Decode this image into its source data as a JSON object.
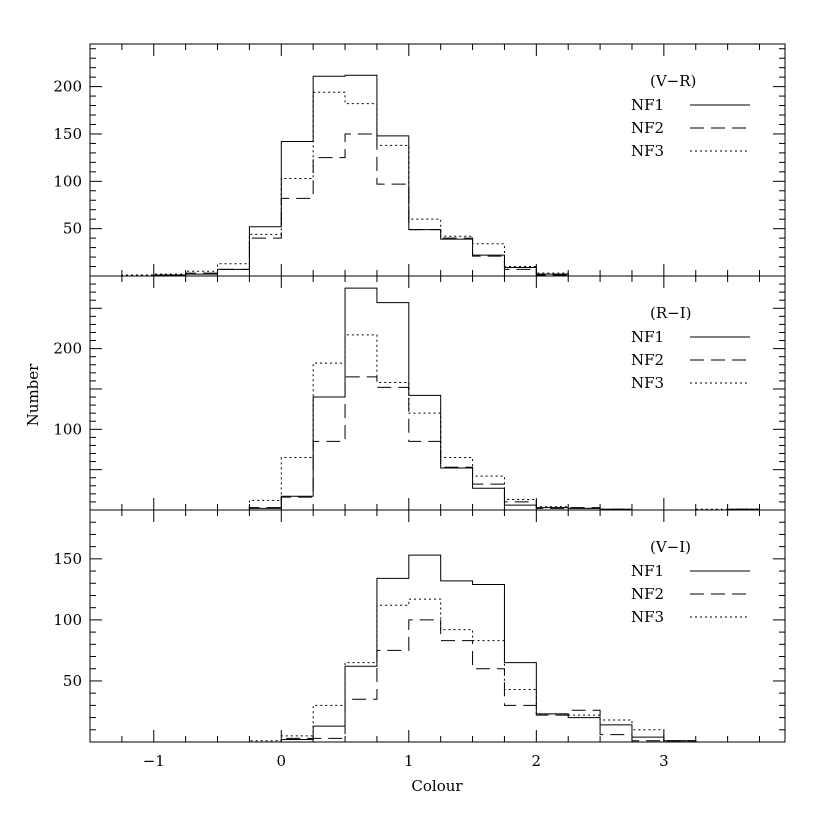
{
  "chart_data": {
    "type": "histogram",
    "xlabel": "Colour",
    "ylabel": "Number",
    "xlim": [
      -1.5,
      3.95
    ],
    "xticks": [
      -1,
      0,
      1,
      2,
      3
    ],
    "xtick_labels": [
      "−1",
      "0",
      "1",
      "2",
      "3"
    ],
    "bin_edges": [
      -1.25,
      -1.0,
      -0.75,
      -0.5,
      -0.25,
      0.0,
      0.25,
      0.5,
      0.75,
      1.0,
      1.25,
      1.5,
      1.75,
      2.0,
      2.25,
      2.5,
      2.75,
      3.0,
      3.25,
      3.5,
      3.75
    ],
    "legend_placement": "top-right",
    "panels": [
      {
        "label": "(V−R)",
        "ylim": [
          0,
          245
        ],
        "yticks": [
          50,
          100,
          150,
          200
        ],
        "series": [
          {
            "name": "NF1",
            "style": "solid",
            "values": [
              0,
              1,
              2,
              7,
              52,
              142,
              211,
              212,
              148,
              49,
              39,
              22,
              9,
              2,
              0,
              0,
              0,
              0,
              0,
              0
            ]
          },
          {
            "name": "NF2",
            "style": "dashed",
            "values": [
              0,
              1,
              3,
              7,
              40,
              82,
              125,
              150,
              97,
              49,
              40,
              21,
              7,
              1,
              0,
              0,
              0,
              0,
              0,
              0
            ]
          },
          {
            "name": "NF3",
            "style": "dotted",
            "values": [
              1,
              2,
              5,
              13,
              44,
              103,
              194,
              182,
              138,
              60,
              42,
              34,
              10,
              3,
              0,
              0,
              0,
              0,
              0,
              0
            ]
          }
        ]
      },
      {
        "label": "(R−I)",
        "ylim": [
          0,
          290
        ],
        "yticks": [
          100,
          200
        ],
        "series": [
          {
            "name": "NF1",
            "style": "solid",
            "values": [
              0,
              0,
              0,
              0,
              2,
              17,
              140,
              275,
              257,
              142,
              52,
              27,
              6,
              3,
              2,
              1,
              0,
              0,
              0,
              1
            ]
          },
          {
            "name": "NF2",
            "style": "dashed",
            "values": [
              0,
              0,
              0,
              0,
              3,
              16,
              85,
              165,
              152,
              85,
              53,
              32,
              10,
              2,
              3,
              1,
              0,
              0,
              0,
              1
            ]
          },
          {
            "name": "NF3",
            "style": "dotted",
            "values": [
              0,
              0,
              0,
              0,
              12,
              65,
              182,
              217,
              158,
              120,
              65,
              42,
              13,
              4,
              2,
              1,
              0,
              0,
              1,
              1
            ]
          }
        ]
      },
      {
        "label": "(V−I)",
        "ylim": [
          0,
          190
        ],
        "yticks": [
          50,
          100,
          150
        ],
        "series": [
          {
            "name": "NF1",
            "style": "solid",
            "values": [
              0,
              0,
              0,
              0,
              0,
              2,
              13,
              62,
              134,
              153,
              132,
              129,
              65,
              23,
              20,
              14,
              4,
              1,
              0,
              0
            ]
          },
          {
            "name": "NF2",
            "style": "dashed",
            "values": [
              0,
              0,
              0,
              0,
              0,
              3,
              3,
              35,
              75,
              100,
              83,
              60,
              30,
              22,
              26,
              6,
              1,
              1,
              0,
              0
            ]
          },
          {
            "name": "NF3",
            "style": "dotted",
            "values": [
              0,
              0,
              0,
              0,
              1,
              5,
              30,
              65,
              112,
              117,
              92,
              83,
              43,
              23,
              22,
              18,
              10,
              1,
              0,
              0
            ]
          }
        ]
      }
    ]
  }
}
